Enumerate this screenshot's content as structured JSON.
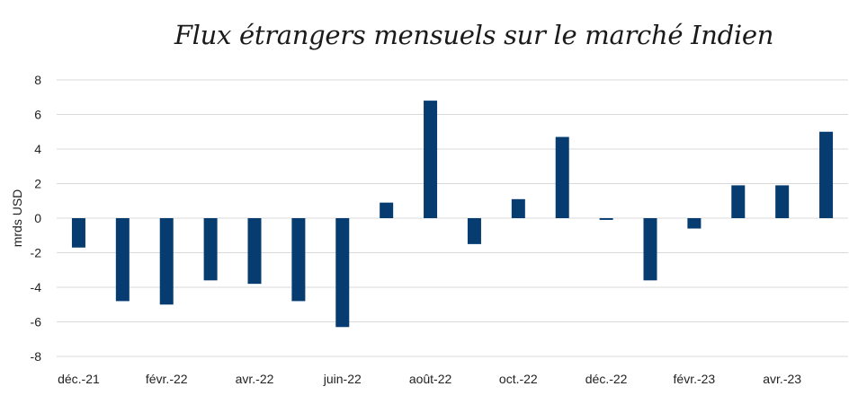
{
  "chart_data": {
    "type": "bar",
    "title": "Flux étrangers mensuels sur le marché Indien",
    "xlabel": "",
    "ylabel": "mrds USD",
    "ylim": [
      -8,
      8
    ],
    "yticks": [
      "8",
      "6",
      "4",
      "2",
      "0",
      "-2",
      "-4",
      "-6",
      "-8"
    ],
    "ytick_values": [
      8,
      6,
      4,
      2,
      0,
      -2,
      -4,
      -6,
      -8
    ],
    "grid": true,
    "categories": [
      "déc.-21",
      "janv.-22",
      "févr.-22",
      "mars-22",
      "avr.-22",
      "mai-22",
      "juin-22",
      "juil.-22",
      "août-22",
      "sept.-22",
      "oct.-22",
      "nov.-22",
      "déc.-22",
      "janv.-23",
      "févr.-23",
      "mars-23",
      "avr.-23",
      "mai-23"
    ],
    "shown_tick_labels": [
      "déc.-21",
      "",
      "févr.-22",
      "",
      "avr.-22",
      "",
      "juin-22",
      "",
      "août-22",
      "",
      "oct.-22",
      "",
      "déc.-22",
      "",
      "févr.-23",
      "",
      "avr.-23",
      ""
    ],
    "values": [
      -1.7,
      -4.8,
      -5.0,
      -3.6,
      -3.8,
      -4.8,
      -6.3,
      0.9,
      6.8,
      -1.5,
      1.1,
      4.7,
      -0.1,
      -3.6,
      -0.6,
      1.9,
      1.9,
      5.0
    ],
    "bar_color": "#063c70",
    "grid_color": "#d9d9d9"
  }
}
